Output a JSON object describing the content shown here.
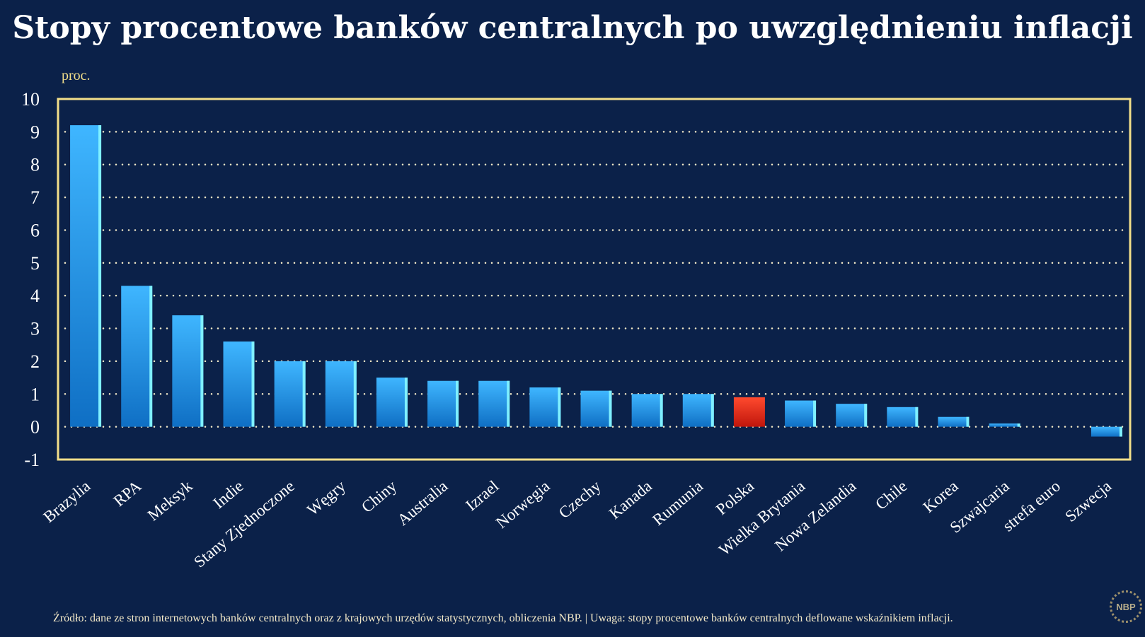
{
  "chart_data": {
    "type": "bar",
    "title": "Stopy procentowe banków centralnych po uwzględnieniu inflacji",
    "ylabel": "proc.",
    "xlabel": "",
    "ylim": [
      -1,
      10
    ],
    "yticks": [
      10,
      9,
      8,
      7,
      6,
      5,
      4,
      3,
      2,
      1,
      0,
      -1
    ],
    "grid": true,
    "categories": [
      "Brazylia",
      "RPA",
      "Meksyk",
      "Indie",
      "Stany Zjednoczone",
      "Węgry",
      "Chiny",
      "Australia",
      "Izrael",
      "Norwegia",
      "Czechy",
      "Kanada",
      "Rumunia",
      "Polska",
      "Wielka Brytania",
      "Nowa Zelandia",
      "Chile",
      "Korea",
      "Szwajcaria",
      "strefa euro",
      "Szwecja"
    ],
    "values": [
      9.2,
      4.3,
      3.4,
      2.6,
      2.0,
      2.0,
      1.5,
      1.4,
      1.4,
      1.2,
      1.1,
      1.0,
      1.0,
      0.9,
      0.8,
      0.7,
      0.6,
      0.3,
      0.1,
      0.0,
      -0.3
    ],
    "highlight": "Polska",
    "colors": {
      "bar": "#1e8fe0",
      "highlight": "#e0281a",
      "frame": "#f3df8a",
      "grid": "#f3e9c8",
      "background": "#0b2149"
    }
  },
  "footer": "Źródło: dane ze stron internetowych banków centralnych oraz z krajowych urzędów statystycznych, obliczenia NBP.  |  Uwaga: stopy procentowe banków centralnych deflowane wskaźnikiem inflacji.",
  "logo": "NBP"
}
